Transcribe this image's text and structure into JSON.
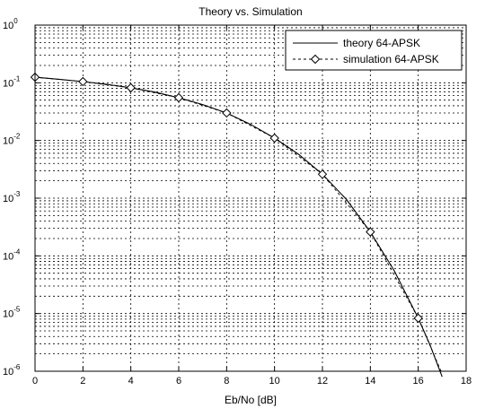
{
  "chart_data": {
    "type": "line",
    "title": "Theory vs. Simulation",
    "xlabel": "Eb/No [dB]",
    "ylabel": "",
    "xlim": [
      0,
      18
    ],
    "ylim": [
      1e-06,
      1
    ],
    "yscale": "log",
    "grid": true,
    "legend_position": "top-right",
    "x_ticks": [
      0,
      2,
      4,
      6,
      8,
      10,
      12,
      14,
      16,
      18
    ],
    "y_ticks": [
      {
        "base": "10",
        "exp": "0",
        "value": 1
      },
      {
        "base": "10",
        "exp": "-1",
        "value": 0.1
      },
      {
        "base": "10",
        "exp": "-2",
        "value": 0.01
      },
      {
        "base": "10",
        "exp": "-3",
        "value": 0.001
      },
      {
        "base": "10",
        "exp": "-4",
        "value": 0.0001
      },
      {
        "base": "10",
        "exp": "-5",
        "value": 1e-05
      },
      {
        "base": "10",
        "exp": "-6",
        "value": 1e-06
      }
    ],
    "series": [
      {
        "name": "theory 64-APSK",
        "line_style": "solid",
        "marker": "none",
        "x": [
          0,
          1,
          2,
          3,
          4,
          5,
          6,
          7,
          8,
          9,
          10,
          11,
          12,
          13,
          14,
          15,
          16,
          16.5,
          17
        ],
        "y": [
          0.125,
          0.115,
          0.105,
          0.094,
          0.082,
          0.069,
          0.055,
          0.042,
          0.03,
          0.019,
          0.011,
          0.0058,
          0.0026,
          0.00095,
          0.00026,
          5.5e-05,
          8.3e-06,
          2.8e-06,
          8e-07
        ]
      },
      {
        "name": "simulation 64-APSK",
        "line_style": "dashed",
        "marker": "diamond",
        "x": [
          0,
          2,
          4,
          6,
          8,
          10,
          12,
          14,
          16,
          17
        ],
        "y": [
          0.125,
          0.105,
          0.082,
          0.055,
          0.03,
          0.011,
          0.0026,
          0.00026,
          8.3e-06,
          9e-07
        ]
      }
    ]
  }
}
